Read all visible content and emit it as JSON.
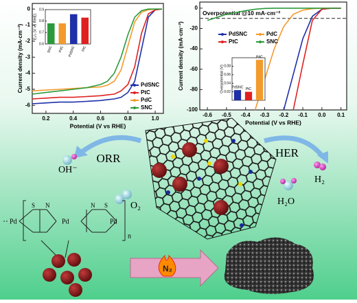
{
  "chart_data": [
    {
      "type": "line",
      "xlabel": "Potential (V vs RHE)",
      "ylabel": "Current density (mA·cm⁻²)",
      "x": [
        0.1,
        0.2,
        0.3,
        0.4,
        0.5,
        0.6,
        0.65,
        0.7,
        0.75,
        0.8,
        0.85,
        0.9,
        0.95,
        1.0,
        1.05
      ],
      "xlim": [
        0.1,
        1.06
      ],
      "xticks": [
        0.2,
        0.4,
        0.6,
        0.8,
        {
          "value": 1.0,
          "label": "1.0"
        }
      ],
      "ylim": [
        -6.5,
        0.35
      ],
      "yticks": [
        0,
        -1,
        -2,
        -3,
        -4,
        -5,
        -6
      ],
      "legend": "lower right",
      "series": [
        {
          "name": "PdSNC",
          "color": "#1f2fa8",
          "values": [
            -5.9,
            -5.85,
            -5.8,
            -5.8,
            -5.75,
            -5.7,
            -5.65,
            -5.6,
            -5.5,
            -5.2,
            -4.5,
            -2.5,
            -0.5,
            -0.05,
            0
          ]
        },
        {
          "name": "PtC",
          "color": "#e02020",
          "values": [
            -5.6,
            -5.55,
            -5.5,
            -5.5,
            -5.45,
            -5.4,
            -5.35,
            -5.3,
            -5.1,
            -4.7,
            -3.6,
            -1.5,
            -0.3,
            -0.05,
            0
          ]
        },
        {
          "name": "PdC",
          "color": "#f39a2c",
          "values": [
            -5.1,
            -5.05,
            -5.0,
            -4.95,
            -4.9,
            -4.85,
            -4.75,
            -4.5,
            -3.8,
            -2.3,
            -0.8,
            -0.2,
            -0.05,
            0,
            0
          ]
        },
        {
          "name": "SNC",
          "color": "#2c9a3c",
          "values": [
            -5.3,
            -5.2,
            -5.1,
            -5.0,
            -4.9,
            -4.7,
            -4.5,
            -4.0,
            -3.0,
            -1.6,
            -0.5,
            -0.1,
            0,
            0,
            0
          ]
        }
      ],
      "inset": {
        "type": "bar",
        "ylabel": "E₁/₂ (V vs RHE)",
        "categories": [
          "SNC",
          "PdC",
          "PdSNC",
          "PtC"
        ],
        "values": [
          0.78,
          0.78,
          0.86,
          0.83
        ],
        "colors": [
          "#2c9a3c",
          "#f39a2c",
          "#1f2fa8",
          "#e02020"
        ],
        "ylim": [
          0.6,
          0.9
        ],
        "yticks": [
          0.6,
          0.7,
          0.8,
          0.9
        ]
      }
    },
    {
      "type": "line",
      "xlabel": "Potential (V vs RHE)",
      "ylabel": "Current density (mA·cm⁻²)",
      "x": [
        -0.6,
        -0.5,
        -0.4,
        -0.35,
        -0.3,
        -0.25,
        -0.2,
        -0.15,
        -0.1,
        -0.05,
        0,
        0.05,
        0.1
      ],
      "xlim": [
        -0.64,
        0.13
      ],
      "xticks": [
        -0.6,
        -0.5,
        -0.4,
        -0.3,
        -0.2,
        -0.1,
        {
          "value": 0.0,
          "label": "0.0"
        },
        0.1
      ],
      "ylim": [
        -100,
        6
      ],
      "yticks": [
        0,
        -20,
        -40,
        -60,
        -80,
        -100
      ],
      "reference_line": -10,
      "annotation": "Overpotential @10 mA·cm⁻²",
      "legend": "upper center",
      "series": [
        {
          "name": "PdSNC",
          "color": "#1f2fa8",
          "values": [
            null,
            null,
            null,
            null,
            null,
            null,
            -100,
            -65,
            -30,
            -8,
            -1,
            0,
            0
          ]
        },
        {
          "name": "PdC",
          "color": "#f39a2c",
          "values": [
            null,
            null,
            null,
            -100,
            -70,
            -40,
            -18,
            -6,
            -2,
            -0.5,
            0,
            0,
            0
          ]
        },
        {
          "name": "PtC",
          "color": "#e02020",
          "values": [
            null,
            null,
            null,
            null,
            null,
            null,
            null,
            -100,
            -55,
            -12,
            -1,
            0,
            0
          ]
        },
        {
          "name": "SNC",
          "color": "#2c9a3c",
          "values": [
            -12,
            -6,
            -2.5,
            -1,
            -0.3,
            0,
            0,
            0,
            0,
            0,
            0,
            0,
            0
          ]
        }
      ],
      "inset": {
        "type": "bar",
        "ylabel": "Overpotential (V)",
        "categories": [
          "PdSNC",
          "PtC",
          "PdC"
        ],
        "values": [
          0.024,
          0.02,
          0.095
        ],
        "colors": [
          "#1f2fa8",
          "#e02020",
          "#f39a2c"
        ],
        "ylim": [
          0,
          0.1
        ],
        "yticks": [
          0.02,
          0.04,
          0.06,
          0.08
        ]
      }
    }
  ],
  "scheme": {
    "orr": "ORR",
    "her": "HER",
    "oh": "OH⁻",
    "o2": "O₂",
    "h2": "H₂",
    "h2o": "H₂O",
    "n2": "N₂",
    "pd_left": "Pd",
    "pd_mid": "Pd",
    "pd_right": "Pd",
    "s": "S",
    "n": "N",
    "repeat": "n"
  }
}
